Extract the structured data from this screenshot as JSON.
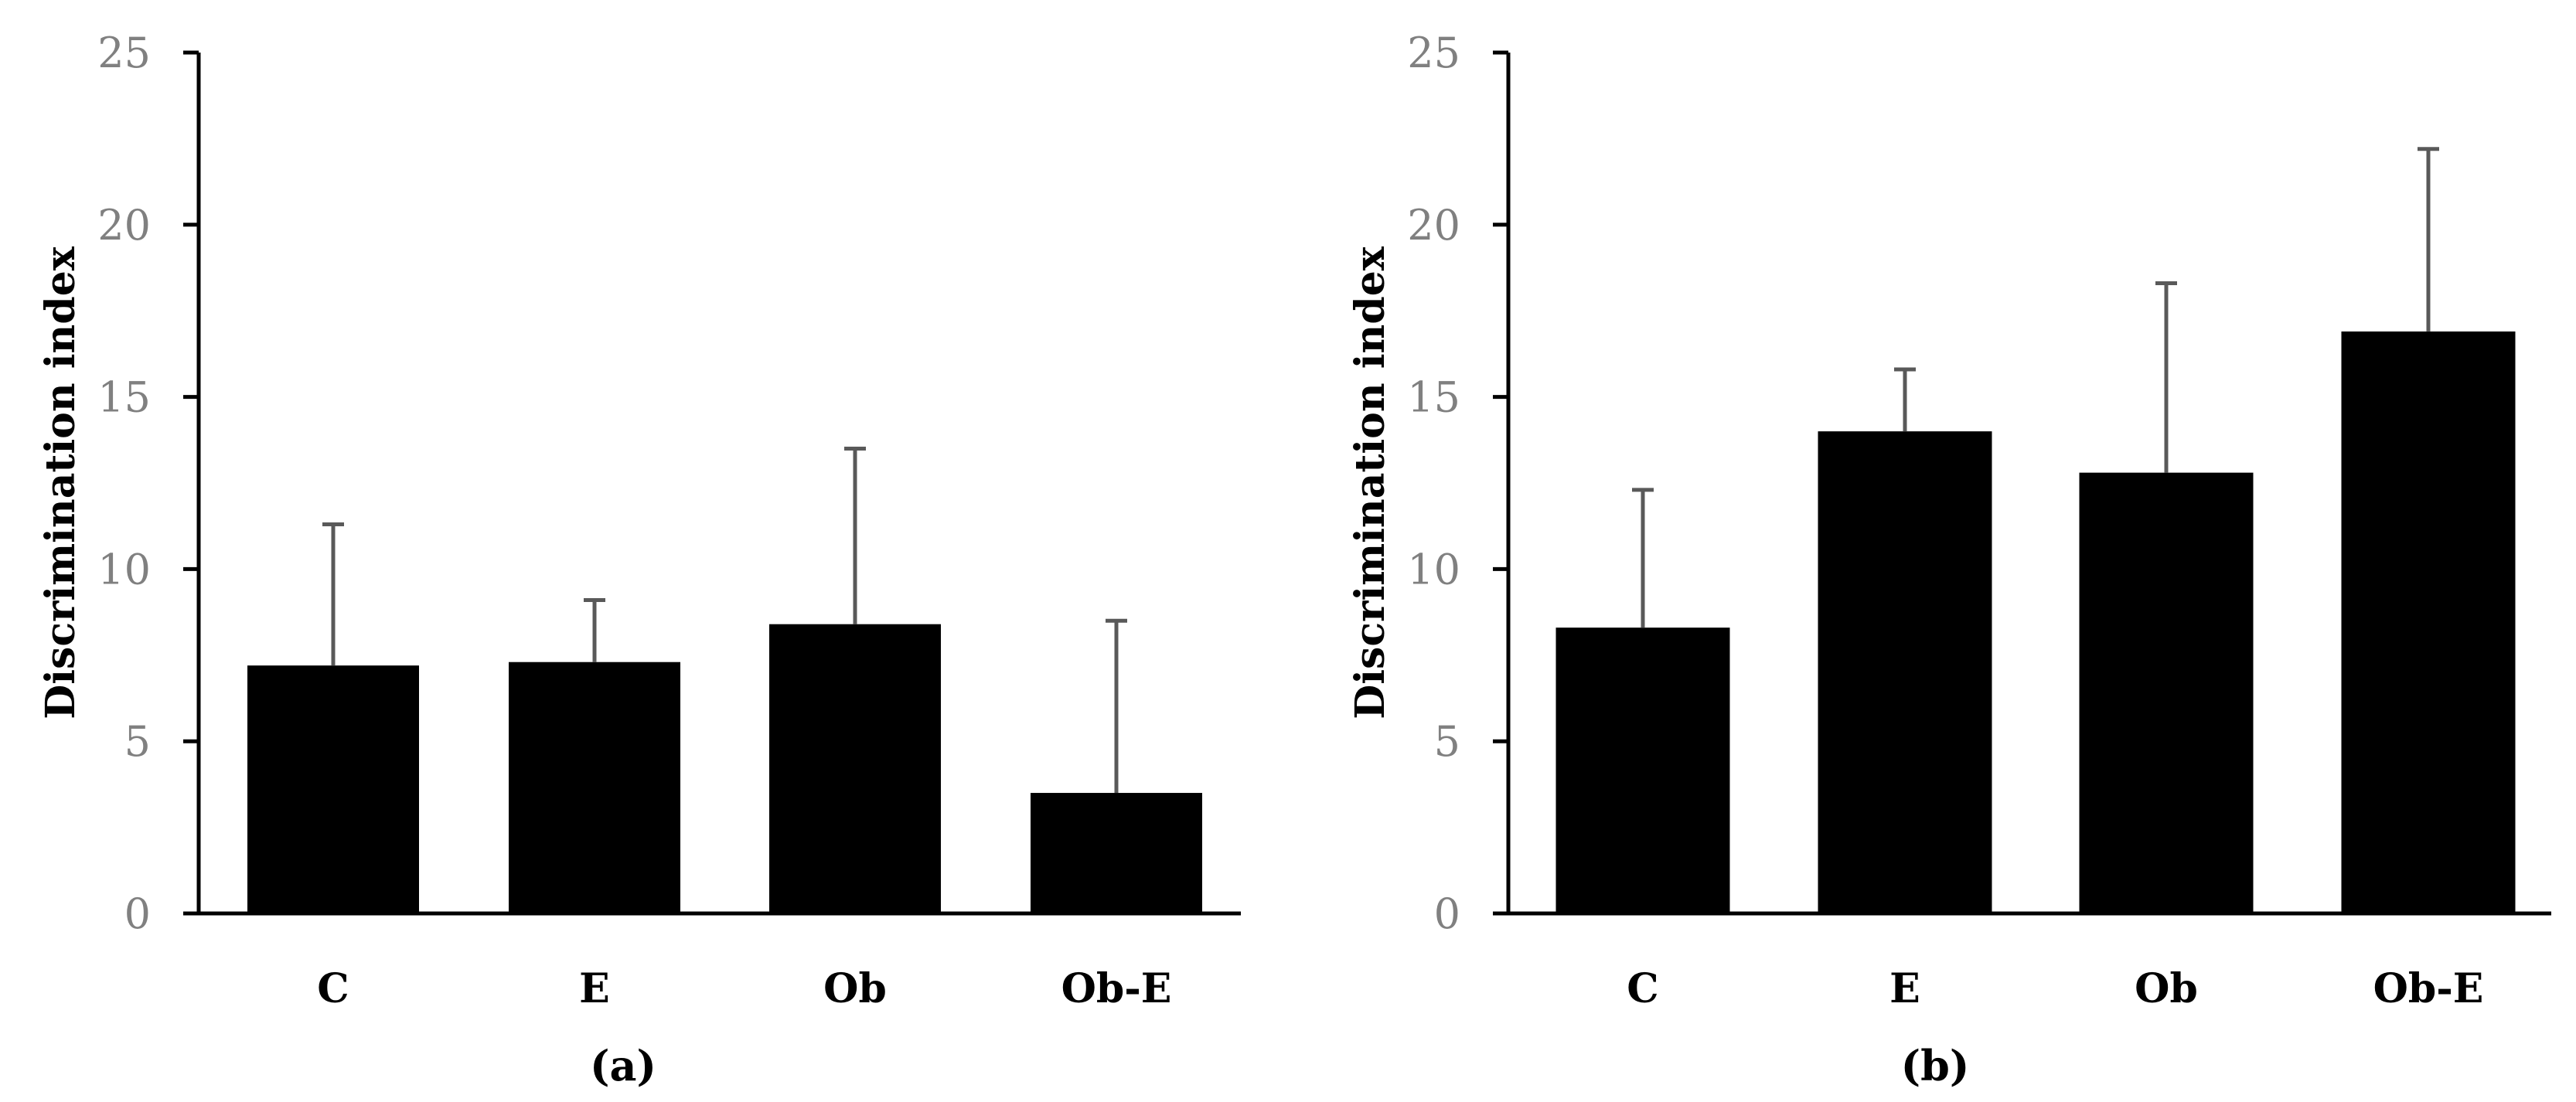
{
  "chart_data": [
    {
      "type": "bar",
      "panel_label": "(a)",
      "ylabel": "Discrimination index",
      "ylim": [
        0,
        25
      ],
      "yticks": [
        0,
        5,
        10,
        15,
        20,
        25
      ],
      "categories": [
        "C",
        "E",
        "Ob",
        "Ob-E"
      ],
      "values": [
        7.2,
        7.3,
        8.4,
        3.5
      ],
      "error_upper": [
        4.1,
        1.8,
        5.1,
        5.0
      ],
      "bar_color": "#000000",
      "error_color": "#595959",
      "grid": false,
      "legend": "none"
    },
    {
      "type": "bar",
      "panel_label": "(b)",
      "ylabel": "Discrimination index",
      "ylim": [
        0,
        25
      ],
      "yticks": [
        0,
        5,
        10,
        15,
        20,
        25
      ],
      "categories": [
        "C",
        "E",
        "Ob",
        "Ob-E"
      ],
      "values": [
        8.3,
        14.0,
        12.8,
        16.9
      ],
      "error_upper": [
        4.0,
        1.8,
        5.5,
        5.3
      ],
      "bar_color": "#000000",
      "error_color": "#595959",
      "grid": false,
      "legend": "none"
    }
  ]
}
